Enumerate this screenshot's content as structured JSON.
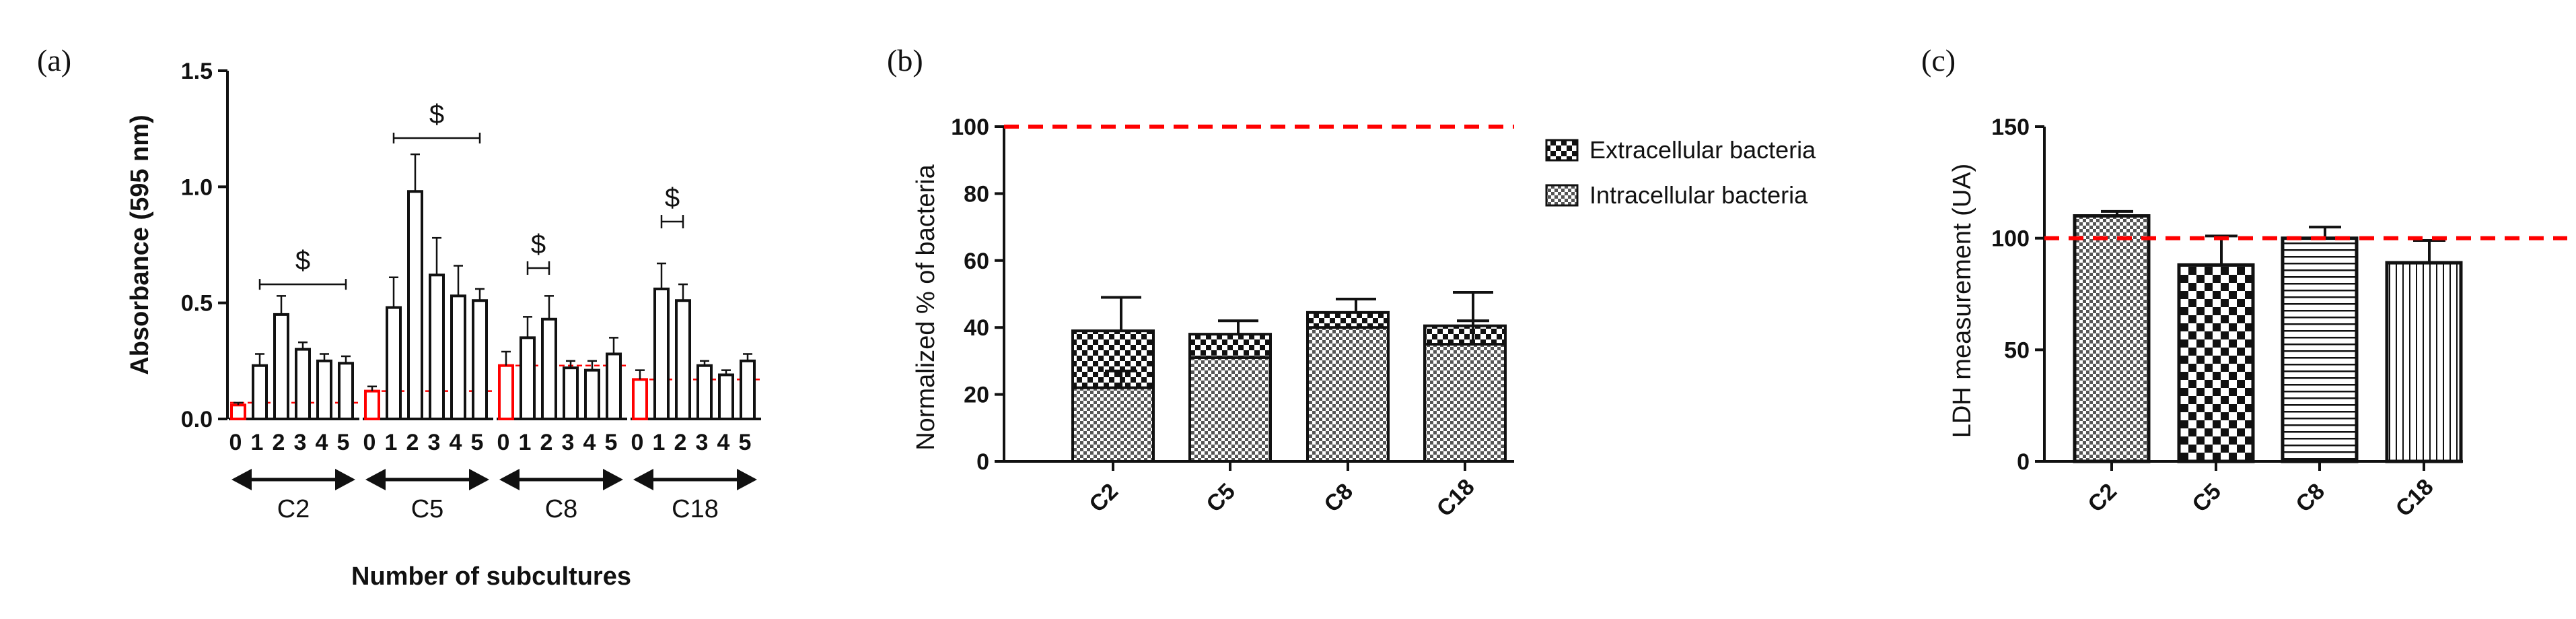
{
  "chart_data": [
    {
      "panel": "(a)",
      "type": "bar",
      "ylabel": "Absorbance (595 nm)",
      "xlabel": "Number of subcultures",
      "ylim": [
        0,
        1.5
      ],
      "yticks": [
        "0.0",
        "0.5",
        "1.0",
        "1.5"
      ],
      "significance_marker": "$",
      "groups": [
        {
          "name": "C2",
          "categories": [
            "0",
            "1",
            "2",
            "3",
            "4",
            "5"
          ],
          "values": [
            0.06,
            0.23,
            0.45,
            0.3,
            0.25,
            0.24
          ],
          "errors": [
            0.01,
            0.05,
            0.08,
            0.03,
            0.03,
            0.03
          ],
          "baseline": 0.07
        },
        {
          "name": "C5",
          "categories": [
            "0",
            "1",
            "2",
            "3",
            "4",
            "5"
          ],
          "values": [
            0.12,
            0.48,
            0.98,
            0.62,
            0.53,
            0.51
          ],
          "errors": [
            0.02,
            0.13,
            0.16,
            0.16,
            0.13,
            0.05
          ],
          "baseline": 0.12
        },
        {
          "name": "C8",
          "categories": [
            "0",
            "1",
            "2",
            "3",
            "4",
            "5"
          ],
          "values": [
            0.23,
            0.35,
            0.43,
            0.22,
            0.21,
            0.28
          ],
          "errors": [
            0.06,
            0.09,
            0.1,
            0.03,
            0.04,
            0.07
          ],
          "baseline": 0.23
        },
        {
          "name": "C18",
          "categories": [
            "0",
            "1",
            "2",
            "3",
            "4",
            "5"
          ],
          "values": [
            0.17,
            0.56,
            0.51,
            0.23,
            0.19,
            0.25
          ],
          "errors": [
            0.04,
            0.11,
            0.07,
            0.02,
            0.02,
            0.03
          ],
          "baseline": 0.17
        }
      ],
      "colors": {
        "control": "#ff0000",
        "sample": "#111111",
        "reference_line": "#ff0000"
      }
    },
    {
      "panel": "(b)",
      "type": "bar",
      "stacked": true,
      "ylabel": "Normalized % of bacteria",
      "ylim": [
        0,
        100
      ],
      "yticks": [
        "0",
        "20",
        "40",
        "60",
        "80",
        "100"
      ],
      "reference_line": 100,
      "categories": [
        "C2",
        "C5",
        "C8",
        "C18"
      ],
      "series": [
        {
          "name": "Intracellular bacteria",
          "values": [
            22,
            31,
            40,
            35
          ],
          "errors": [
            5,
            0,
            0,
            7
          ]
        },
        {
          "name": "Extracellular bacteria",
          "values": [
            17,
            7,
            4.5,
            5.5
          ],
          "errors": [
            10,
            4,
            4,
            10
          ]
        }
      ],
      "legend_position": "top-right"
    },
    {
      "panel": "(c)",
      "type": "bar",
      "ylabel": "LDH measurement (UA)",
      "ylim": [
        0,
        150
      ],
      "yticks": [
        "0",
        "50",
        "100",
        "150"
      ],
      "reference_line": 100,
      "categories": [
        "C2",
        "C5",
        "C8",
        "C18"
      ],
      "values": [
        110,
        88,
        100,
        89
      ],
      "errors": [
        2,
        13,
        5,
        10
      ],
      "patterns": [
        "checker-small",
        "checker-large",
        "horizontal-lines",
        "vertical-lines"
      ]
    }
  ]
}
